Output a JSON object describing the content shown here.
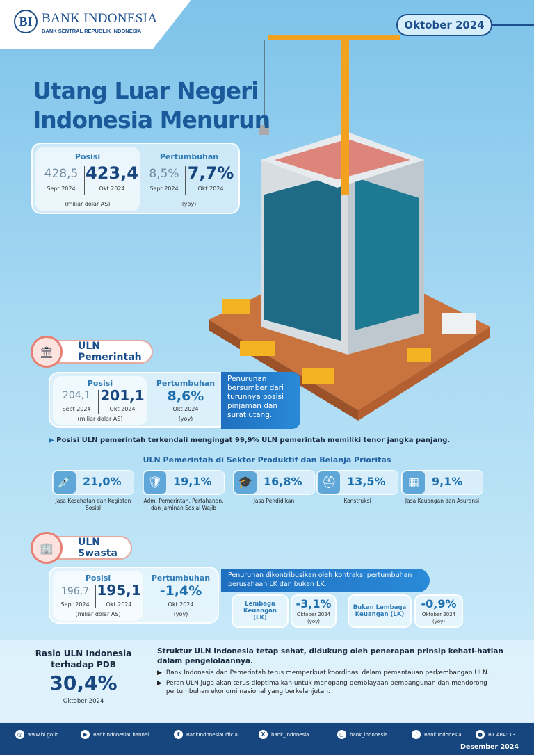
{
  "header": {
    "logo_mark": "BI",
    "bank_name": "BANK INDONESIA",
    "bank_sub": "BANK SENTRAL REPUBLIK INDONESIA",
    "period": "Oktober 2024"
  },
  "title": {
    "line1": "Utang Luar Negeri",
    "line2": "Indonesia Menurun"
  },
  "total": {
    "posisi_label": "Posisi",
    "prev": "428,5",
    "prev_period": "Sept 2024",
    "curr": "423,4",
    "curr_period": "Okt 2024",
    "unit": "(miliar dolar AS)",
    "growth_label": "Pertumbuhan",
    "growth_prev": "8,5%",
    "growth_curr": "7,7%",
    "growth_prev_period": "Sept 2024",
    "growth_curr_period": "Okt 2024",
    "growth_unit": "(yoy)"
  },
  "pemerintah": {
    "title": "ULN Pemerintah",
    "posisi_label": "Posisi",
    "prev": "204,1",
    "prev_period": "Sept 2024",
    "curr": "201,1",
    "curr_period": "Okt 2024",
    "unit": "(miliar dolar AS)",
    "growth_label": "Pertumbuhan",
    "growth": "8,6%",
    "growth_period": "Okt 2024",
    "growth_unit": "(yoy)",
    "note": "Penurunan bersumber dari turunnya posisi pinjaman dan surat utang.",
    "bullet": "Posisi ULN pemerintah terkendali mengingat 99,9% ULN pemerintah memiliki tenor jangka panjang.",
    "sector_title": "ULN Pemerintah di Sektor Produktif dan Belanja Prioritas",
    "sectors": [
      {
        "icon": "syringe-icon",
        "pct": "21,0%",
        "name": "Jasa Kesehatan dan Kegiatan Sosial"
      },
      {
        "icon": "shield-icon",
        "pct": "19,1%",
        "name": "Adm. Pemerintah, Pertahanan, dan Jaminan Sosial Wajib"
      },
      {
        "icon": "graduation-cap-icon",
        "pct": "16,8%",
        "name": "Jasa Pendidikan"
      },
      {
        "icon": "hard-hat-icon",
        "pct": "13,5%",
        "name": "Konstruksi"
      },
      {
        "icon": "calculator-icon",
        "pct": "9,1%",
        "name": "Jasa Keuangan dan Asuransi"
      }
    ]
  },
  "swasta": {
    "title": "ULN Swasta",
    "posisi_label": "Posisi",
    "prev": "196,7",
    "prev_period": "Sept 2024",
    "curr": "195,1",
    "curr_period": "Okt 2024",
    "unit": "(miliar dolar AS)",
    "growth_label": "Pertumbuhan",
    "growth": "-1,4%",
    "growth_period": "Okt 2024",
    "growth_unit": "(yoy)",
    "note": "Penurunan dikontribusikan oleh kontraksi pertumbuhan perusahaan LK dan bukan LK.",
    "lk": {
      "label": "Lembaga Keuangan (LK)",
      "value": "-3,1%",
      "period": "Oktober 2024",
      "unit": "(yoy)"
    },
    "non_lk": {
      "label": "Bukan Lembaga Keuangan (LK)",
      "value": "-0,9%",
      "period": "Oktober 2024",
      "unit": "(yoy)"
    }
  },
  "ratio": {
    "title": "Rasio ULN Indonesia terhadap PDB",
    "value": "30,4%",
    "period": "Oktober 2024"
  },
  "summary": {
    "headline": "Struktur ULN Indonesia tetap sehat, didukung oleh penerapan prinsip kehati-hatian dalam pengelolaannya.",
    "bullets": [
      "Bank Indonesia dan Pemerintah terus memperkuat koordinasi dalam pemantauan perkembangan ULN.",
      "Peran ULN juga akan terus dioptimalkan untuk menopang pembiayaan pembangunan dan mendorong pertumbuhan ekonomi nasional yang berkelanjutan."
    ]
  },
  "footer": {
    "links": [
      {
        "icon": "globe-icon",
        "label": "www.bi.go.id"
      },
      {
        "icon": "youtube-icon",
        "label": "BankIndonesiaChannel"
      },
      {
        "icon": "facebook-icon",
        "label": "BankIndonesiaOfficial"
      },
      {
        "icon": "x-icon",
        "label": "bank_indonesia"
      },
      {
        "icon": "instagram-icon",
        "label": "bank_indonesia"
      },
      {
        "icon": "tiktok-icon",
        "label": "Bank Indonesia"
      },
      {
        "icon": "bicara-icon",
        "label": "BICARA: 131"
      }
    ],
    "date": "Desember 2024"
  },
  "colors": {
    "primary": "#1d4f8c",
    "accent": "#2a8ad8",
    "footer": "#16467d"
  }
}
